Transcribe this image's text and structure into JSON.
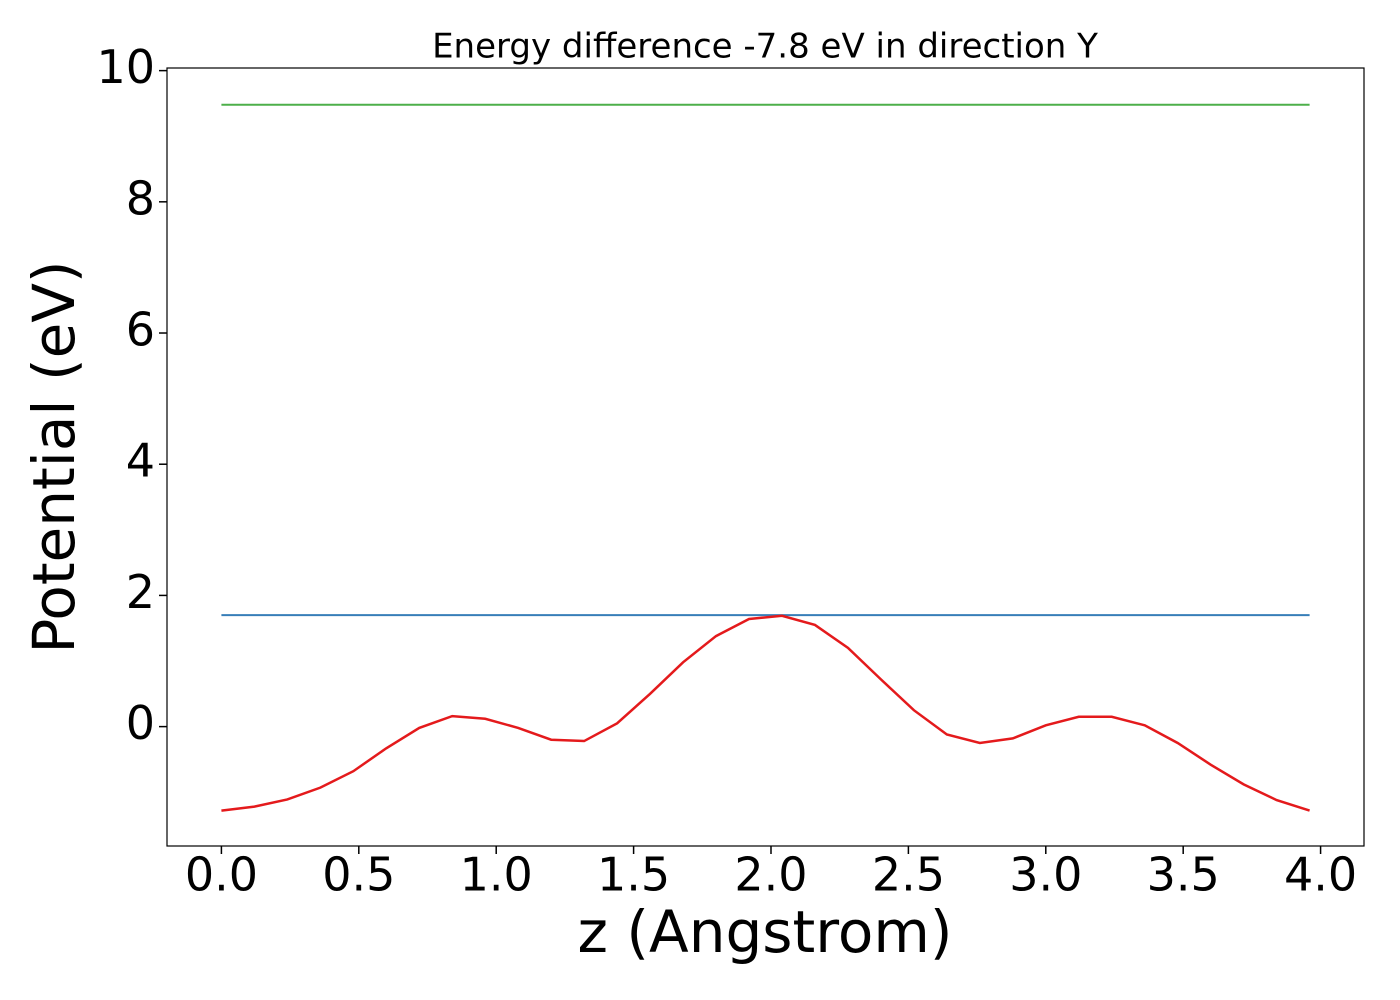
{
  "chart_data": {
    "type": "line",
    "title": "Energy difference -7.8 eV in direction Y",
    "xlabel": "z (Angstrom)",
    "ylabel": "Potential (eV)",
    "xlim": [
      -0.198,
      4.158
    ],
    "ylim": [
      -1.82,
      10.04
    ],
    "xticks": [
      {
        "value": 0,
        "label": "0.0"
      },
      0.5,
      {
        "value": 1,
        "label": "1.0"
      },
      1.5,
      {
        "value": 2,
        "label": "2.0"
      },
      2.5,
      {
        "value": 3,
        "label": "3.0"
      },
      3.5,
      {
        "value": 4,
        "label": "4.0"
      }
    ],
    "yticks": [
      0,
      2,
      4,
      6,
      8,
      10
    ],
    "series": [
      {
        "color": "#4daf4a",
        "x": [
          0,
          3.96
        ],
        "values": [
          9.48,
          9.48
        ]
      },
      {
        "color": "#377eb8",
        "x": [
          0,
          3.96
        ],
        "values": [
          1.7,
          1.7
        ]
      },
      {
        "color": "#e41a1c",
        "x": [
          0,
          0.12,
          0.24,
          0.36,
          0.48,
          0.6,
          0.72,
          0.84,
          0.96,
          1.08,
          1.2,
          1.32,
          1.44,
          1.56,
          1.68,
          1.8,
          1.92,
          2.04,
          2.16,
          2.28,
          2.4,
          2.52,
          2.64,
          2.76,
          2.88,
          3.0,
          3.12,
          3.24,
          3.36,
          3.48,
          3.6,
          3.72,
          3.84,
          3.96
        ],
        "values": [
          -1.28,
          -1.22,
          -1.11,
          -0.93,
          -0.68,
          -0.33,
          -0.02,
          0.16,
          0.12,
          -0.02,
          -0.2,
          -0.22,
          0.05,
          0.5,
          0.98,
          1.38,
          1.64,
          1.69,
          1.55,
          1.2,
          0.72,
          0.25,
          -0.12,
          -0.25,
          -0.18,
          0.02,
          0.15,
          0.15,
          0.02,
          -0.25,
          -0.58,
          -0.88,
          -1.12,
          -1.28
        ]
      }
    ]
  }
}
